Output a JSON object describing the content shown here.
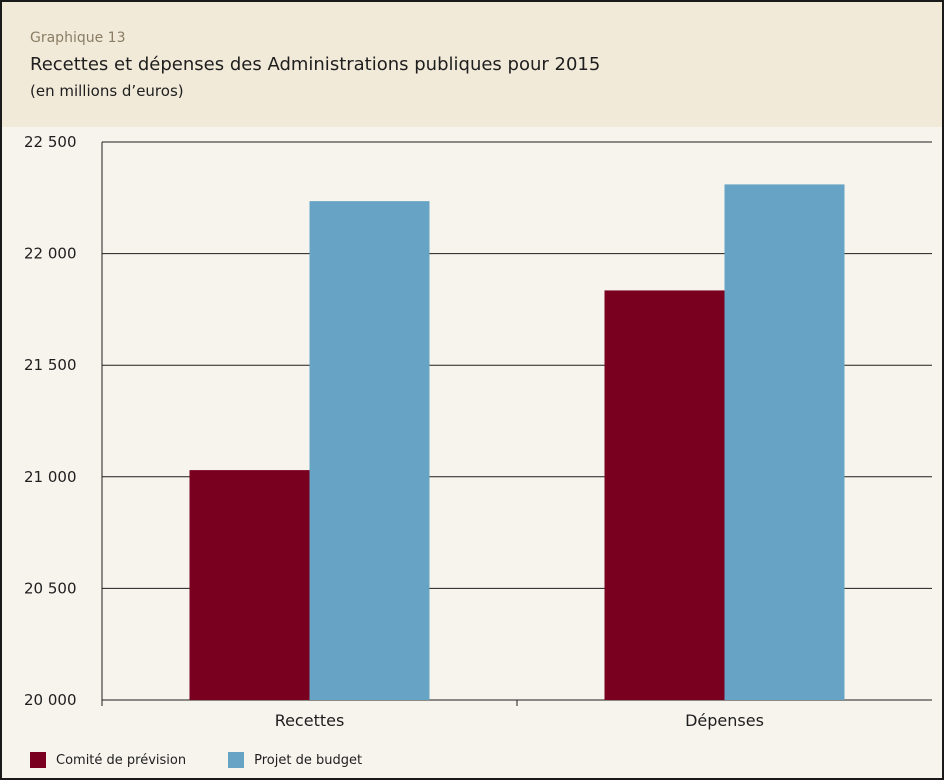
{
  "header": {
    "kicker": "Graphique 13",
    "title": "Recettes et dépenses des Administrations publiques pour 2015",
    "subtitle": "(en millions d’euros)"
  },
  "chart_data": {
    "type": "bar",
    "categories": [
      "Recettes",
      "Dépenses"
    ],
    "series": [
      {
        "name": "Comité de prévision",
        "values": [
          21030,
          21835
        ],
        "color": "#7a0020"
      },
      {
        "name": "Projet de budget",
        "values": [
          22235,
          22310
        ],
        "color": "#66a3c4"
      }
    ],
    "ylim": [
      20000,
      22500
    ],
    "yticks": [
      20000,
      20500,
      21000,
      21500,
      22000,
      22500
    ],
    "ytick_labels": [
      "20 000",
      "20 500",
      "21 000",
      "21 500",
      "22 000",
      "22 500"
    ],
    "grid": true,
    "legend_position": "bottom-left"
  }
}
